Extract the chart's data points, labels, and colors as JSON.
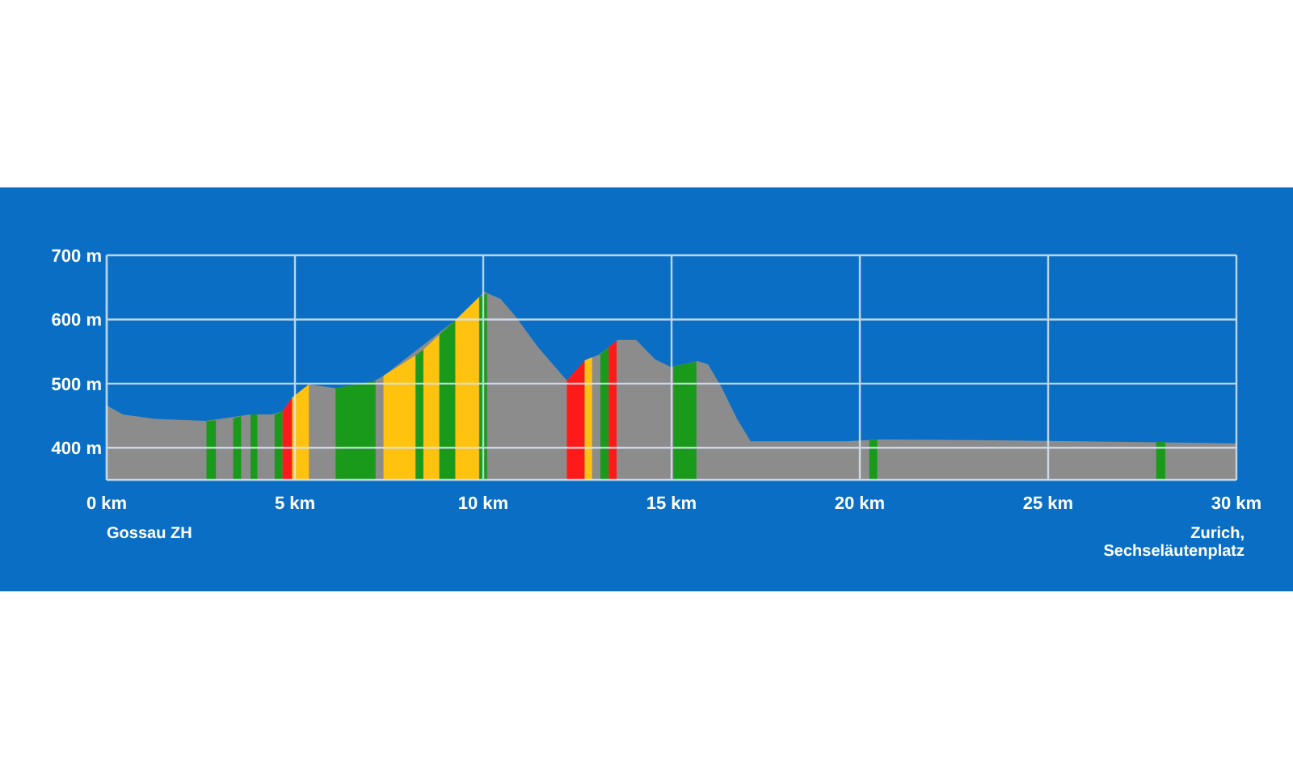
{
  "chart_data": {
    "type": "area",
    "xlim": [
      0,
      30
    ],
    "ylim": [
      350,
      700
    ],
    "xticks": [
      {
        "value": 0,
        "label": "0 km"
      },
      {
        "value": 5,
        "label": "5 km"
      },
      {
        "value": 10,
        "label": "10 km"
      },
      {
        "value": 15,
        "label": "15 km"
      },
      {
        "value": 20,
        "label": "20 km"
      },
      {
        "value": 25,
        "label": "25 km"
      },
      {
        "value": 30,
        "label": "30 km"
      }
    ],
    "yticks": [
      {
        "value": 400,
        "label": "400 m"
      },
      {
        "value": 500,
        "label": "500 m"
      },
      {
        "value": 600,
        "label": "600 m"
      },
      {
        "value": 700,
        "label": "700 m"
      }
    ],
    "grid": true,
    "annotations": [
      "Gossau ZH",
      "Zurich,\nSechseläutenplatz"
    ],
    "series": [
      {
        "color": "#8c8c8c",
        "x": [
          0,
          0.43,
          1.28,
          2.62,
          3.24,
          3.82,
          4.39,
          4.67,
          4.92,
          5.37,
          6.08,
          7.07,
          7.35,
          9.26,
          10.03,
          10.46,
          10.88,
          11.45,
          12.22,
          12.72,
          13.07,
          13.57,
          14.06,
          14.56,
          14.98,
          15.69,
          15.97,
          16.32,
          16.74,
          17.1,
          19.64,
          20.5,
          23,
          25.86,
          30
        ],
        "values": [
          466,
          452,
          445,
          442,
          447,
          452,
          452,
          457,
          478,
          499,
          493,
          503,
          512,
          599,
          643,
          632,
          603,
          557,
          505,
          537,
          545,
          568,
          568,
          538,
          526,
          535,
          530,
          495,
          445,
          410,
          410,
          413,
          412,
          410,
          407
        ]
      },
      {
        "color": "#1a9a1a",
        "x": [
          2.65,
          2.9,
          3.1,
          3.36,
          3.57,
          3.7,
          3.82,
          4,
          4.2,
          4.46,
          4.67,
          5.5,
          6.08,
          7.14,
          7.7,
          8.2,
          8.41,
          8.6,
          8.83,
          9.26,
          9.5,
          9.89,
          10.1,
          12,
          13.11,
          13.33,
          14,
          15.05,
          15.66,
          18,
          20.25,
          20.46,
          24,
          27.87,
          28.11
        ],
        "values": [
          442,
          443,
          null,
          446,
          449,
          null,
          452,
          452,
          null,
          452,
          457,
          null,
          493,
          504,
          null,
          544,
          553,
          null,
          576,
          599,
          null,
          635,
          641,
          null,
          546,
          557,
          null,
          527,
          534,
          null,
          412,
          413,
          null,
          409,
          409
        ]
      },
      {
        "color": "#ffc20e",
        "x": [
          4.92,
          5.37,
          6.5,
          7.35,
          8.2,
          8.3,
          8.41,
          8.83,
          9,
          9.26,
          9.89,
          11,
          12.69,
          12.89
        ],
        "values": [
          478,
          499,
          null,
          512,
          544,
          null,
          553,
          576,
          null,
          599,
          635,
          null,
          536,
          541
        ]
      },
      {
        "color": "#ff1a1a",
        "x": [
          4.67,
          4.92,
          8,
          12.22,
          12.69,
          13,
          13.33,
          13.54
        ],
        "values": [
          457,
          478,
          null,
          505,
          536,
          null,
          557,
          567
        ]
      }
    ]
  }
}
